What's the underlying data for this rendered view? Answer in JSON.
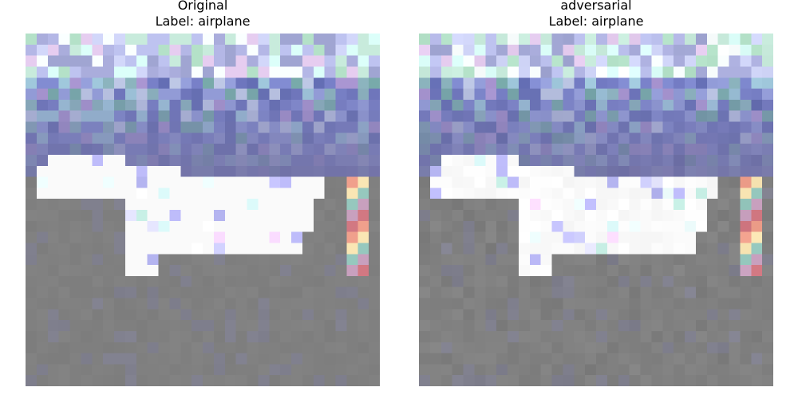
{
  "panels": [
    {
      "title": "Original",
      "label_text": "Label: airplane",
      "image_description": "pixelated low-resolution image of a white airplane on a gray runway under a blue-purple sky"
    },
    {
      "title": "adversarial",
      "label_text": "Label: airplane",
      "image_description": "same pixelated airplane image with slight adversarial perturbation"
    }
  ],
  "colors": {
    "sky": "#6f76b4",
    "sky_top": "#b9c0e0",
    "ground": "#808080",
    "plane": "#ffffff"
  }
}
